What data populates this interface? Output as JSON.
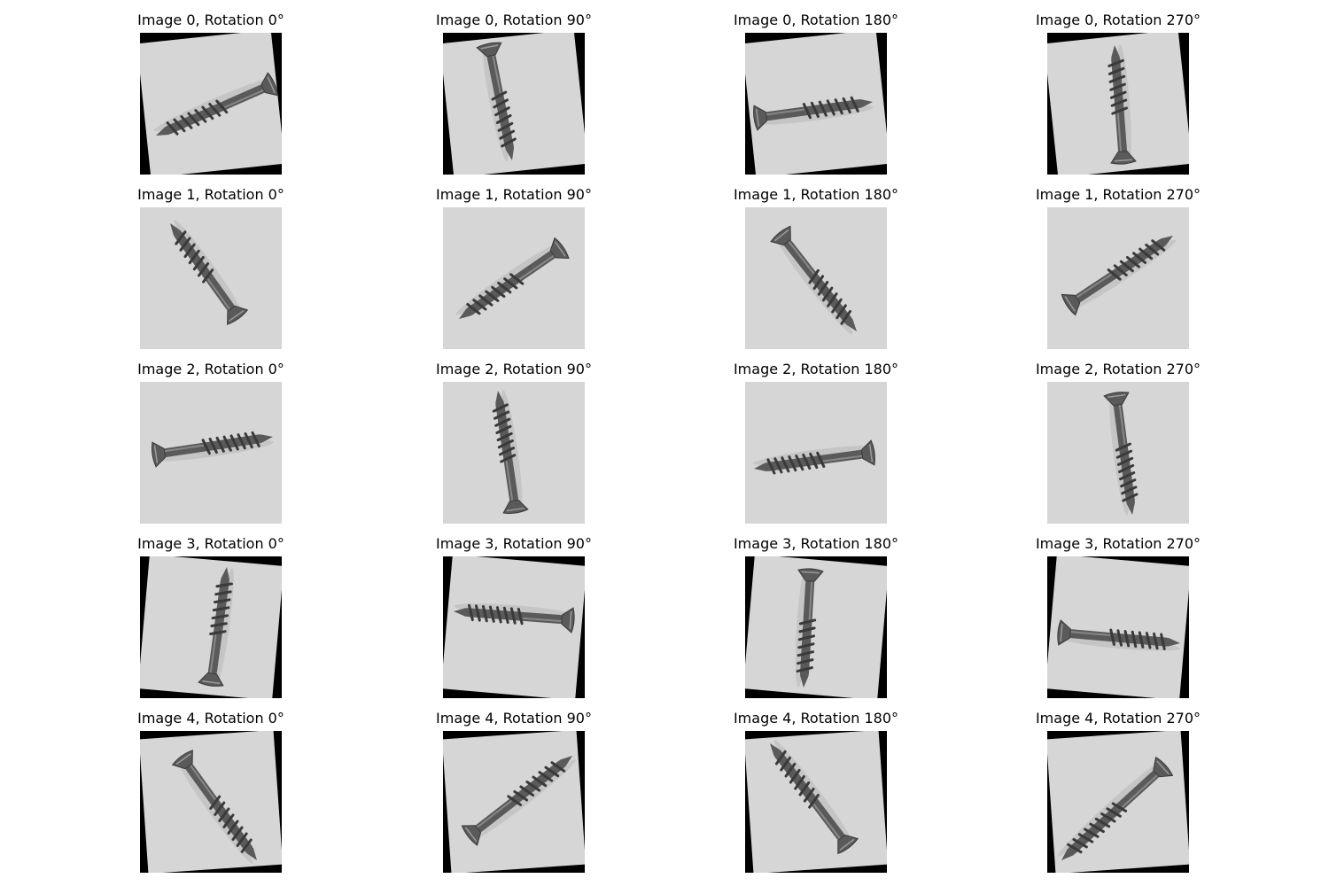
{
  "figure": {
    "panels": [
      {
        "title": "Image 0, Rotation 0°",
        "image": 0,
        "rotation": 0,
        "view": "screw"
      },
      {
        "title": "Image 0, Rotation 90°",
        "image": 0,
        "rotation": 90,
        "view": "screw"
      },
      {
        "title": "Image 0, Rotation 180°",
        "image": 0,
        "rotation": 180,
        "view": "screw"
      },
      {
        "title": "Image 0, Rotation 270°",
        "image": 0,
        "rotation": 270,
        "view": "screw"
      },
      {
        "title": "Image 1, Rotation 0°",
        "image": 1,
        "rotation": 0,
        "view": "screw"
      },
      {
        "title": "Image 1, Rotation 90°",
        "image": 1,
        "rotation": 90,
        "view": "screw"
      },
      {
        "title": "Image 1, Rotation 180°",
        "image": 1,
        "rotation": 180,
        "view": "screw"
      },
      {
        "title": "Image 1, Rotation 270°",
        "image": 1,
        "rotation": 270,
        "view": "screw"
      },
      {
        "title": "Image 2, Rotation 0°",
        "image": 2,
        "rotation": 0,
        "view": "screw"
      },
      {
        "title": "Image 2, Rotation 90°",
        "image": 2,
        "rotation": 90,
        "view": "screw"
      },
      {
        "title": "Image 2, Rotation 180°",
        "image": 2,
        "rotation": 180,
        "view": "screw"
      },
      {
        "title": "Image 2, Rotation 270°",
        "image": 2,
        "rotation": 270,
        "view": "screw"
      },
      {
        "title": "Image 3, Rotation 0°",
        "image": 3,
        "rotation": 0,
        "view": "screw"
      },
      {
        "title": "Image 3, Rotation 90°",
        "image": 3,
        "rotation": 90,
        "view": "screw"
      },
      {
        "title": "Image 3, Rotation 180°",
        "image": 3,
        "rotation": 180,
        "view": "screw"
      },
      {
        "title": "Image 3, Rotation 270°",
        "image": 3,
        "rotation": 270,
        "view": "screw"
      },
      {
        "title": "Image 4, Rotation 0°",
        "image": 4,
        "rotation": 0,
        "view": "screw"
      },
      {
        "title": "Image 4, Rotation 90°",
        "image": 4,
        "rotation": 90,
        "view": "screw"
      },
      {
        "title": "Image 4, Rotation 180°",
        "image": 4,
        "rotation": 180,
        "view": "screw"
      },
      {
        "title": "Image 4, Rotation 270°",
        "image": 4,
        "rotation": 270,
        "view": "screw"
      }
    ],
    "colors": {
      "background": "#ffffff",
      "photo_surface": "#d6d6d6",
      "padding_black": "#000000",
      "screw_metal": "#5a5a5a",
      "screw_highlight": "#9a9a9a",
      "screw_shadow": "#3a3a3a"
    }
  }
}
